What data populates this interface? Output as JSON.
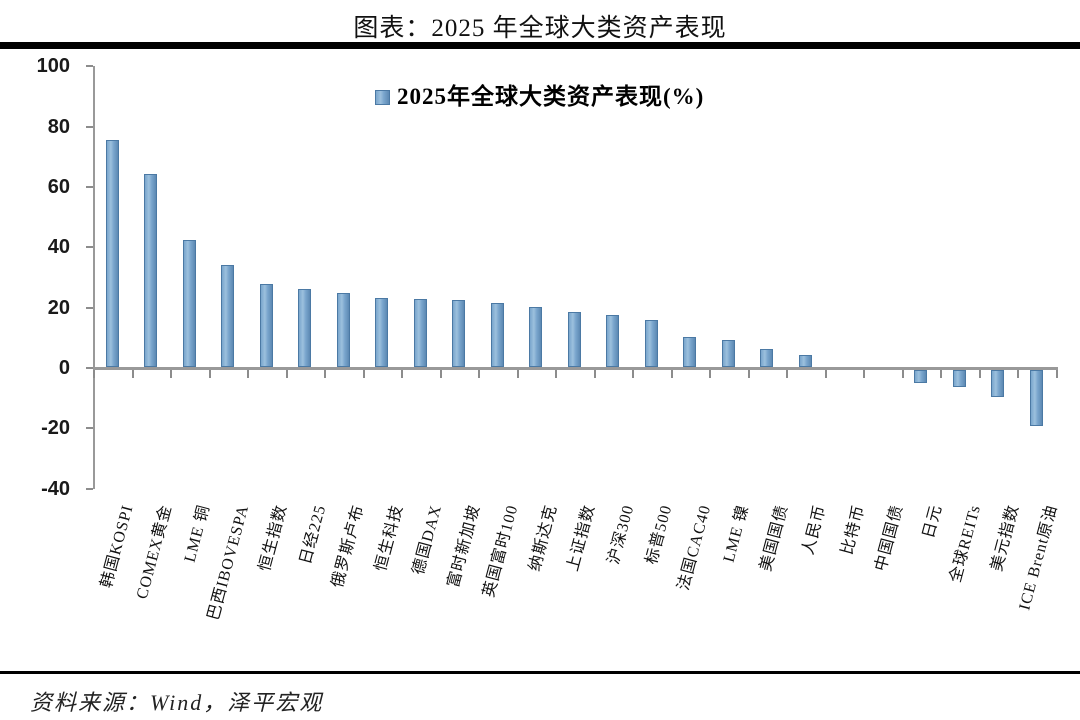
{
  "page": {
    "title": "图表：2025 年全球大类资产表现",
    "source": "资料来源：Wind，泽平宏观"
  },
  "chart_data": {
    "type": "bar",
    "title": "图表：2025 年全球大类资产表现",
    "legend": "2025年全球大类资产表现(%)",
    "legend_position": "top-center",
    "legend_marker": "blue-square-icon",
    "categories": [
      "韩国KOSPI",
      "COMEX黄金",
      "LME 铜",
      "巴西IBOVESPA",
      "恒生指数",
      "日经225",
      "俄罗斯卢布",
      "恒生科技",
      "德国DAX",
      "富时新加坡",
      "英国富时100",
      "纳斯达克",
      "上证指数",
      "沪深300",
      "标普500",
      "法国CAC40",
      "LME 镍",
      "美国国债",
      "人民币",
      "比特币",
      "中国国债",
      "日元",
      "全球REITs",
      "美元指数",
      "ICE Brent原油"
    ],
    "values": [
      75.5,
      64.2,
      42.5,
      34.2,
      27.9,
      26.1,
      24.9,
      23.3,
      22.9,
      22.4,
      21.4,
      20.1,
      18.4,
      17.7,
      16.0,
      10.2,
      9.4,
      6.2,
      4.2,
      0.3,
      0.1,
      -4.8,
      -6.0,
      -9.3,
      -18.8
    ],
    "xlabel": "",
    "ylabel": "",
    "ylim": [
      -40,
      100
    ],
    "yticks": [
      100,
      80,
      60,
      40,
      20,
      0,
      -20,
      -40
    ],
    "grid": false,
    "colors": {
      "bar_light": "#9cc0dd",
      "bar_main": "#7aa6cd",
      "bar_dark": "#5d89b3",
      "bar_border": "#4b79a4",
      "axis": "#999999",
      "tick": "#8c8c8c",
      "text": "#111111"
    }
  }
}
